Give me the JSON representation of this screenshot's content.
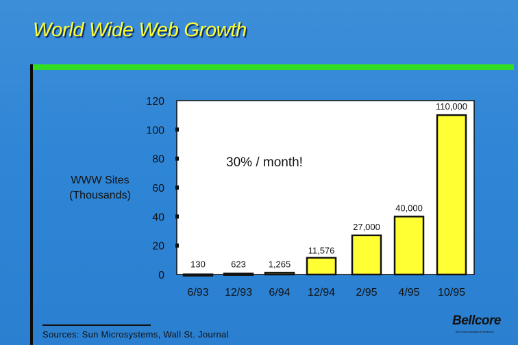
{
  "slide": {
    "title": "World Wide Web Growth",
    "sources": "Sources: Sun Microsystems, Wall St. Journal",
    "logo": "Bellcore",
    "logo_subtitle": "Bell Communications Research"
  },
  "chart_data": {
    "type": "bar",
    "ylabel_line1": "WWW Sites",
    "ylabel_line2": "(Thousands)",
    "annotation": "30% / month!",
    "categories": [
      "6/93",
      "12/93",
      "6/94",
      "12/94",
      "2/95",
      "4/95",
      "10/95"
    ],
    "values": [
      0.13,
      0.623,
      1.265,
      11.576,
      27,
      40,
      110
    ],
    "data_labels": [
      "130",
      "623",
      "1,265",
      "11,576",
      "27,000",
      "40,000",
      "110,000"
    ],
    "ylim": [
      0,
      120
    ],
    "yticks": [
      0,
      20,
      40,
      60,
      80,
      100,
      120
    ],
    "bar_color": "#ffff33",
    "background_color": "#ffffff",
    "grid": false,
    "legend": "none"
  }
}
